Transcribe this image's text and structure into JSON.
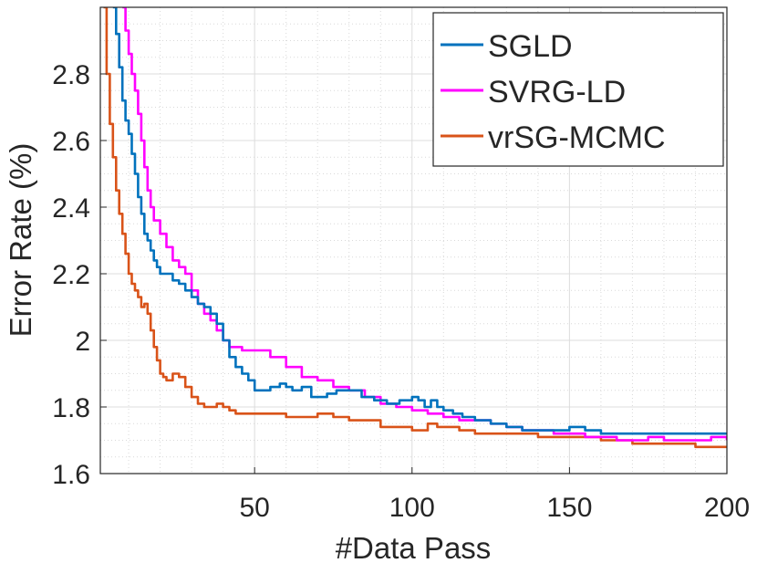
{
  "chart_data": {
    "type": "line",
    "title": "",
    "xlabel": "#Data Pass",
    "ylabel": "Error Rate (%)",
    "xlim": [
      1,
      200
    ],
    "ylim": [
      1.6,
      3.0
    ],
    "xticks": [
      50,
      100,
      150,
      200
    ],
    "xtick_labels": [
      "50",
      "100",
      "150",
      "200"
    ],
    "yticks": [
      1.6,
      1.8,
      2.0,
      2.2,
      2.4,
      2.6,
      2.8
    ],
    "ytick_labels": [
      "1.6",
      "1.8",
      "2",
      "2.2",
      "2.4",
      "2.6",
      "2.8"
    ],
    "grid": true,
    "minor_grid": true,
    "legend_position": "top-right",
    "series": [
      {
        "name": "SGLD",
        "color": "#0072bd",
        "points": [
          [
            5,
            3.0
          ],
          [
            6,
            2.92
          ],
          [
            7,
            2.82
          ],
          [
            8,
            2.72
          ],
          [
            9,
            2.66
          ],
          [
            10,
            2.62
          ],
          [
            11,
            2.56
          ],
          [
            12,
            2.5
          ],
          [
            13,
            2.43
          ],
          [
            14,
            2.38
          ],
          [
            15,
            2.32
          ],
          [
            16,
            2.3
          ],
          [
            17,
            2.27
          ],
          [
            18,
            2.24
          ],
          [
            19,
            2.22
          ],
          [
            20,
            2.2
          ],
          [
            22,
            2.2
          ],
          [
            24,
            2.18
          ],
          [
            26,
            2.17
          ],
          [
            28,
            2.15
          ],
          [
            30,
            2.13
          ],
          [
            32,
            2.11
          ],
          [
            34,
            2.1
          ],
          [
            36,
            2.08
          ],
          [
            38,
            2.05
          ],
          [
            40,
            2.0
          ],
          [
            42,
            1.95
          ],
          [
            44,
            1.92
          ],
          [
            46,
            1.9
          ],
          [
            48,
            1.88
          ],
          [
            50,
            1.85
          ],
          [
            52,
            1.85
          ],
          [
            55,
            1.86
          ],
          [
            58,
            1.87
          ],
          [
            60,
            1.86
          ],
          [
            62,
            1.85
          ],
          [
            65,
            1.86
          ],
          [
            68,
            1.83
          ],
          [
            70,
            1.83
          ],
          [
            73,
            1.84
          ],
          [
            76,
            1.85
          ],
          [
            80,
            1.85
          ],
          [
            84,
            1.83
          ],
          [
            88,
            1.82
          ],
          [
            92,
            1.81
          ],
          [
            96,
            1.82
          ],
          [
            100,
            1.83
          ],
          [
            102,
            1.82
          ],
          [
            104,
            1.8
          ],
          [
            106,
            1.82
          ],
          [
            108,
            1.8
          ],
          [
            110,
            1.79
          ],
          [
            113,
            1.78
          ],
          [
            116,
            1.77
          ],
          [
            120,
            1.76
          ],
          [
            125,
            1.75
          ],
          [
            130,
            1.74
          ],
          [
            135,
            1.73
          ],
          [
            140,
            1.73
          ],
          [
            145,
            1.73
          ],
          [
            150,
            1.74
          ],
          [
            155,
            1.73
          ],
          [
            160,
            1.72
          ],
          [
            170,
            1.72
          ],
          [
            180,
            1.72
          ],
          [
            190,
            1.72
          ],
          [
            200,
            1.72
          ]
        ]
      },
      {
        "name": "SVRG-LD",
        "color": "#ff00ff",
        "points": [
          [
            8,
            3.0
          ],
          [
            9,
            2.93
          ],
          [
            10,
            2.86
          ],
          [
            11,
            2.8
          ],
          [
            12,
            2.75
          ],
          [
            13,
            2.68
          ],
          [
            14,
            2.6
          ],
          [
            15,
            2.52
          ],
          [
            16,
            2.45
          ],
          [
            17,
            2.4
          ],
          [
            18,
            2.36
          ],
          [
            20,
            2.32
          ],
          [
            22,
            2.28
          ],
          [
            24,
            2.24
          ],
          [
            26,
            2.22
          ],
          [
            28,
            2.2
          ],
          [
            30,
            2.15
          ],
          [
            32,
            2.11
          ],
          [
            34,
            2.08
          ],
          [
            36,
            2.06
          ],
          [
            38,
            2.03
          ],
          [
            40,
            2.0
          ],
          [
            42,
            1.98
          ],
          [
            44,
            1.98
          ],
          [
            46,
            1.97
          ],
          [
            48,
            1.97
          ],
          [
            50,
            1.97
          ],
          [
            55,
            1.95
          ],
          [
            60,
            1.92
          ],
          [
            65,
            1.89
          ],
          [
            70,
            1.88
          ],
          [
            75,
            1.86
          ],
          [
            80,
            1.85
          ],
          [
            85,
            1.83
          ],
          [
            90,
            1.81
          ],
          [
            95,
            1.8
          ],
          [
            100,
            1.79
          ],
          [
            105,
            1.78
          ],
          [
            110,
            1.77
          ],
          [
            115,
            1.76
          ],
          [
            120,
            1.76
          ],
          [
            125,
            1.75
          ],
          [
            130,
            1.74
          ],
          [
            135,
            1.73
          ],
          [
            140,
            1.73
          ],
          [
            145,
            1.72
          ],
          [
            150,
            1.72
          ],
          [
            155,
            1.71
          ],
          [
            160,
            1.71
          ],
          [
            165,
            1.7
          ],
          [
            170,
            1.7
          ],
          [
            175,
            1.71
          ],
          [
            180,
            1.7
          ],
          [
            185,
            1.7
          ],
          [
            190,
            1.7
          ],
          [
            195,
            1.71
          ],
          [
            200,
            1.7
          ]
        ]
      },
      {
        "name": "vrSG-MCMC",
        "color": "#d95319",
        "points": [
          [
            2,
            3.0
          ],
          [
            3,
            2.8
          ],
          [
            4,
            2.65
          ],
          [
            5,
            2.55
          ],
          [
            6,
            2.45
          ],
          [
            7,
            2.38
          ],
          [
            8,
            2.32
          ],
          [
            9,
            2.26
          ],
          [
            10,
            2.2
          ],
          [
            11,
            2.17
          ],
          [
            12,
            2.15
          ],
          [
            13,
            2.13
          ],
          [
            14,
            2.1
          ],
          [
            15,
            2.11
          ],
          [
            16,
            2.08
          ],
          [
            17,
            2.03
          ],
          [
            18,
            1.98
          ],
          [
            19,
            1.94
          ],
          [
            20,
            1.9
          ],
          [
            21,
            1.89
          ],
          [
            22,
            1.88
          ],
          [
            24,
            1.9
          ],
          [
            26,
            1.89
          ],
          [
            28,
            1.86
          ],
          [
            30,
            1.83
          ],
          [
            32,
            1.81
          ],
          [
            34,
            1.8
          ],
          [
            36,
            1.8
          ],
          [
            38,
            1.81
          ],
          [
            40,
            1.8
          ],
          [
            42,
            1.79
          ],
          [
            44,
            1.78
          ],
          [
            46,
            1.78
          ],
          [
            50,
            1.78
          ],
          [
            55,
            1.78
          ],
          [
            60,
            1.77
          ],
          [
            65,
            1.77
          ],
          [
            70,
            1.78
          ],
          [
            75,
            1.77
          ],
          [
            80,
            1.76
          ],
          [
            85,
            1.76
          ],
          [
            90,
            1.74
          ],
          [
            95,
            1.74
          ],
          [
            100,
            1.73
          ],
          [
            103,
            1.73
          ],
          [
            105,
            1.75
          ],
          [
            108,
            1.74
          ],
          [
            110,
            1.74
          ],
          [
            115,
            1.73
          ],
          [
            120,
            1.72
          ],
          [
            130,
            1.72
          ],
          [
            140,
            1.71
          ],
          [
            150,
            1.71
          ],
          [
            160,
            1.7
          ],
          [
            170,
            1.69
          ],
          [
            180,
            1.69
          ],
          [
            190,
            1.68
          ],
          [
            200,
            1.68
          ]
        ]
      }
    ]
  }
}
